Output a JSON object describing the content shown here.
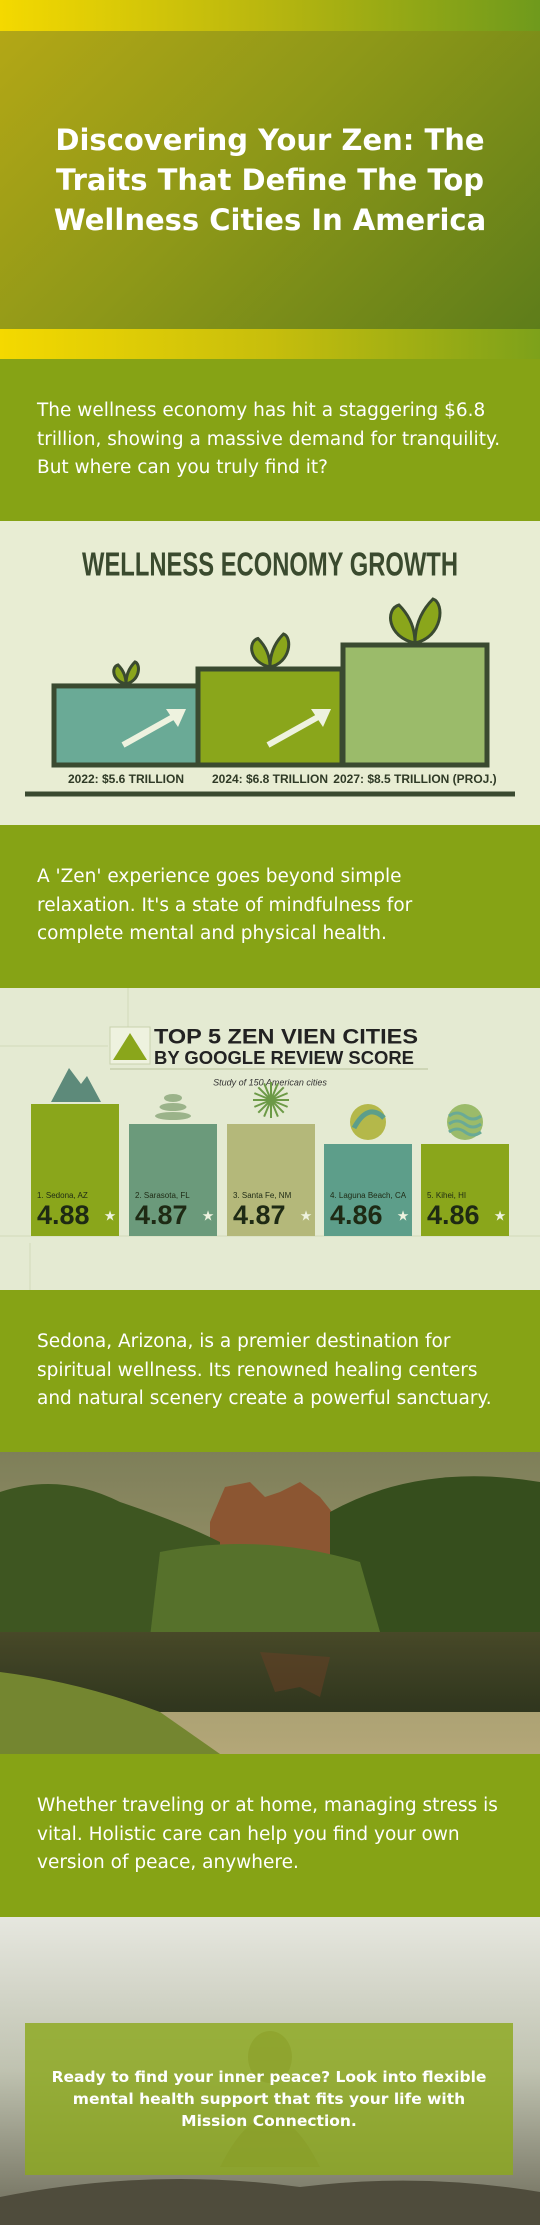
{
  "header": {
    "title": "Discovering Your Zen: The Traits That Define The Top Wellness Cities In America"
  },
  "intro": {
    "text": "The wellness economy has hit a staggering $6.8 trillion, showing a massive demand for tranquility. But where can you truly find it?"
  },
  "zen": {
    "text": "A 'Zen' experience goes beyond simple relaxation. It's a state of mindfulness for complete mental and physical health."
  },
  "sedona": {
    "text": "Sedona, Arizona, is a premier destination for spiritual wellness. Its renowned healing centers and natural scenery create a powerful sanctuary."
  },
  "holistic": {
    "text": "Whether traveling or at home, managing stress is vital. Holistic care can help you find your own version of peace, anywhere."
  },
  "cta": {
    "text": "Ready to find your inner peace? Look into flexible mental health support that fits your life with Mission Connection."
  },
  "chart_data": [
    {
      "type": "step",
      "title": "WELLNESS ECONOMY GROWTH",
      "categories": [
        "2022: $5.6 TRILLION",
        "2024: $6.8 TRILLION",
        "2027: $8.5 TRILLION (PROJ.)"
      ],
      "values": [
        5.6,
        6.8,
        8.5
      ],
      "colors": [
        "#6aaa96",
        "#8aa61b",
        "#9bbb6a"
      ]
    },
    {
      "type": "bar",
      "title": "TOP 5 ZEN VIEN CITIES",
      "subtitle": "BY GOOGLE REVIEW SCORE",
      "annotation": "Study of 150 American cities",
      "categories": [
        "1. Sedona, AZ",
        "2. Sarasota, FL",
        "3. Santa Fe, NM",
        "4. Laguna Beach, CA",
        "5. Kihei, HI"
      ],
      "values": [
        4.88,
        4.87,
        4.87,
        4.86,
        4.86
      ],
      "colors": [
        "#8aa61b",
        "#6b9a7b",
        "#b4b87a",
        "#5d9e8a",
        "#8aa61b"
      ]
    }
  ]
}
